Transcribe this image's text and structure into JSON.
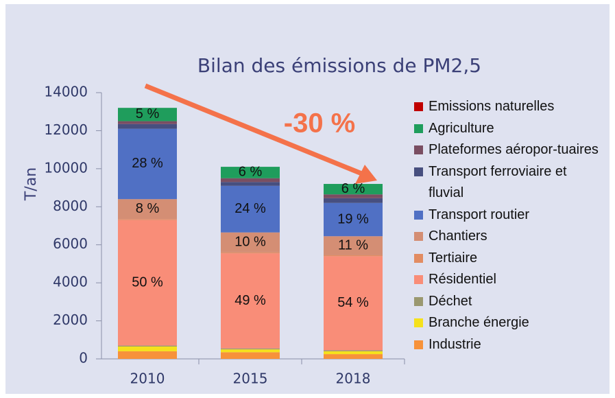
{
  "chart_data": {
    "type": "stacked_bar",
    "title": "Bilan des émissions de PM2,5",
    "y_label": "T/an",
    "annotation": "-30 %",
    "categories": [
      "2010",
      "2015",
      "2018"
    ],
    "ylim": [
      0,
      14000
    ],
    "yticks": [
      0,
      2000,
      4000,
      6000,
      8000,
      10000,
      12000,
      14000
    ],
    "series": [
      {
        "name": "Industrie",
        "color": "#f7923a",
        "values": [
          400,
          350,
          250
        ]
      },
      {
        "name": "Branche énergie",
        "color": "#f5e11c",
        "values": [
          250,
          150,
          150
        ]
      },
      {
        "name": "Déchet",
        "color": "#9a9870",
        "values": [
          50,
          50,
          50
        ]
      },
      {
        "name": "Résidentiel",
        "color": "#f98d78",
        "values": [
          6600,
          5000,
          4950
        ],
        "labels": [
          "50 %",
          "49 %",
          "54 %"
        ]
      },
      {
        "name": "Tertiaire",
        "color": "#e28c62",
        "values": [
          50,
          50,
          50
        ]
      },
      {
        "name": "Chantiers",
        "color": "#d48e74",
        "values": [
          1050,
          1050,
          1000
        ],
        "labels": [
          "8 %",
          "10 %",
          "11 %"
        ]
      },
      {
        "name": "Transport routier",
        "color": "#5070c4",
        "values": [
          3700,
          2450,
          1750
        ],
        "labels": [
          "28 %",
          "24 %",
          "19 %"
        ]
      },
      {
        "name": "Transport ferroviaire et fluvial",
        "color": "#474f7f",
        "values": [
          250,
          200,
          250
        ]
      },
      {
        "name": "Plateformes aéropor-tuaires",
        "color": "#7a4e62",
        "values": [
          150,
          200,
          200
        ]
      },
      {
        "name": "Agriculture",
        "color": "#1f9d5c",
        "values": [
          700,
          600,
          550
        ],
        "labels": [
          "5 %",
          "6 %",
          "6 %"
        ]
      },
      {
        "name": "Emissions naturelles",
        "color": "#c00000",
        "values": [
          0,
          0,
          0
        ]
      }
    ]
  }
}
